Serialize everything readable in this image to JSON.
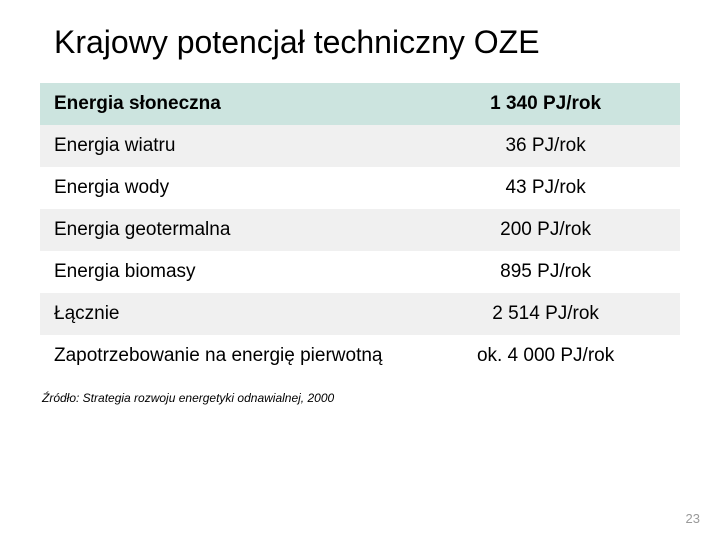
{
  "title": "Krajowy potencjał techniczny OZE",
  "table": {
    "col_widths": [
      "58%",
      "42%"
    ],
    "header_bg": "#cce4df",
    "alt_bg": "#f0f0f0",
    "plain_bg": "#ffffff",
    "font_size": 19,
    "rows": [
      {
        "label": "Energia słoneczna",
        "value": "1 340 PJ/rok",
        "kind": "header"
      },
      {
        "label": "Energia wiatru",
        "value": "36 PJ/rok",
        "kind": "alt"
      },
      {
        "label": "Energia wody",
        "value": "43 PJ/rok",
        "kind": "plain"
      },
      {
        "label": "Energia geotermalna",
        "value": "200 PJ/rok",
        "kind": "alt-tall"
      },
      {
        "label": "Energia biomasy",
        "value": "895  PJ/rok",
        "kind": "plain"
      },
      {
        "label": "Łącznie",
        "value": "2 514 PJ/rok",
        "kind": "alt"
      },
      {
        "label": "Zapotrzebowanie na energię pierwotną",
        "value": "ok. 4 000 PJ/rok",
        "kind": "plain"
      }
    ]
  },
  "source": "Źródło: Strategia rozwoju energetyki odnawialnej, 2000",
  "page_number": "23",
  "colors": {
    "title": "#000000",
    "text": "#000000",
    "pagenum": "#9a9a9a",
    "background": "#ffffff"
  }
}
